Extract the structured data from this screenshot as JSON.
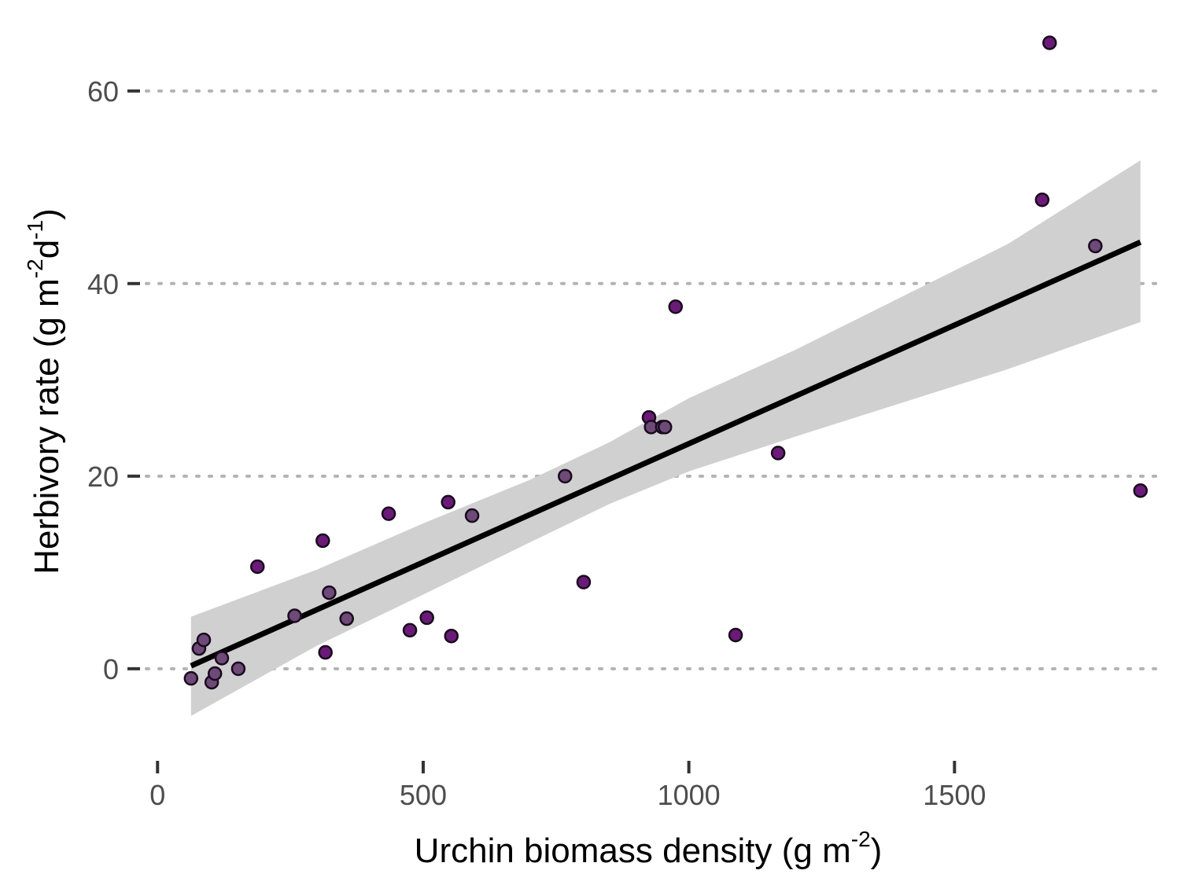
{
  "chart_data": {
    "type": "scatter",
    "title": "",
    "xlabel": {
      "text": "Urchin biomass density (g m",
      "sup": "-2",
      "close": ")"
    },
    "ylabel": {
      "part1": "Herbivory rate (g m",
      "sup1": "-2",
      "part2": "d",
      "sup2": "-1",
      "close": ")"
    },
    "xlim": [
      -30,
      1880
    ],
    "ylim": [
      -8.5,
      67
    ],
    "x_ticks": [
      0,
      500,
      1000,
      1500
    ],
    "y_ticks": [
      0,
      20,
      40,
      60
    ],
    "x_tick_labels": [
      "0",
      "500",
      "1000",
      "1500"
    ],
    "y_tick_labels": [
      "0",
      "20",
      "40",
      "60"
    ],
    "grid": "horizontal dotted",
    "legend": "none",
    "colors": {
      "point_fill": "#6a1b78",
      "point_fill_light": "#6e4a78",
      "point_stroke": "#1a0a1e",
      "fit_line": "#000000",
      "ribbon": "#d0d0d0",
      "grid": "#b3b3b3",
      "tick": "#333333"
    },
    "points": [
      {
        "x": 63,
        "y": -1.0
      },
      {
        "x": 78,
        "y": 2.1
      },
      {
        "x": 87,
        "y": 3.0
      },
      {
        "x": 102,
        "y": -1.4
      },
      {
        "x": 108,
        "y": -0.5
      },
      {
        "x": 121,
        "y": 1.1
      },
      {
        "x": 152,
        "y": 0.0
      },
      {
        "x": 188,
        "y": 10.6
      },
      {
        "x": 258,
        "y": 5.5
      },
      {
        "x": 311,
        "y": 13.3
      },
      {
        "x": 316,
        "y": 1.7
      },
      {
        "x": 323,
        "y": 7.9
      },
      {
        "x": 356,
        "y": 5.2
      },
      {
        "x": 435,
        "y": 16.1
      },
      {
        "x": 475,
        "y": 4.0
      },
      {
        "x": 507,
        "y": 5.3
      },
      {
        "x": 547,
        "y": 17.3
      },
      {
        "x": 553,
        "y": 3.4
      },
      {
        "x": 592,
        "y": 15.9
      },
      {
        "x": 767,
        "y": 20.0
      },
      {
        "x": 802,
        "y": 9.0
      },
      {
        "x": 925,
        "y": 26.1
      },
      {
        "x": 929,
        "y": 25.1
      },
      {
        "x": 950,
        "y": 25.1
      },
      {
        "x": 955,
        "y": 25.1
      },
      {
        "x": 975,
        "y": 37.6
      },
      {
        "x": 1088,
        "y": 3.5
      },
      {
        "x": 1168,
        "y": 22.4
      },
      {
        "x": 1665,
        "y": 48.7
      },
      {
        "x": 1679,
        "y": 65.0
      },
      {
        "x": 1765,
        "y": 43.9
      },
      {
        "x": 1850,
        "y": 18.5
      }
    ],
    "fit_line": {
      "x": [
        63,
        1850
      ],
      "y": [
        0.3,
        44.3
      ]
    },
    "confidence_band": {
      "x": [
        63,
        300,
        500,
        700,
        850,
        1000,
        1200,
        1400,
        1600,
        1850
      ],
      "upper": [
        5.4,
        10.3,
        15.1,
        19.6,
        23.5,
        28.1,
        33.1,
        38.6,
        44.1,
        52.8
      ],
      "lower": [
        -4.9,
        2.4,
        7.7,
        13.1,
        17.1,
        20.5,
        24.1,
        27.6,
        31.1,
        36.0
      ]
    }
  }
}
